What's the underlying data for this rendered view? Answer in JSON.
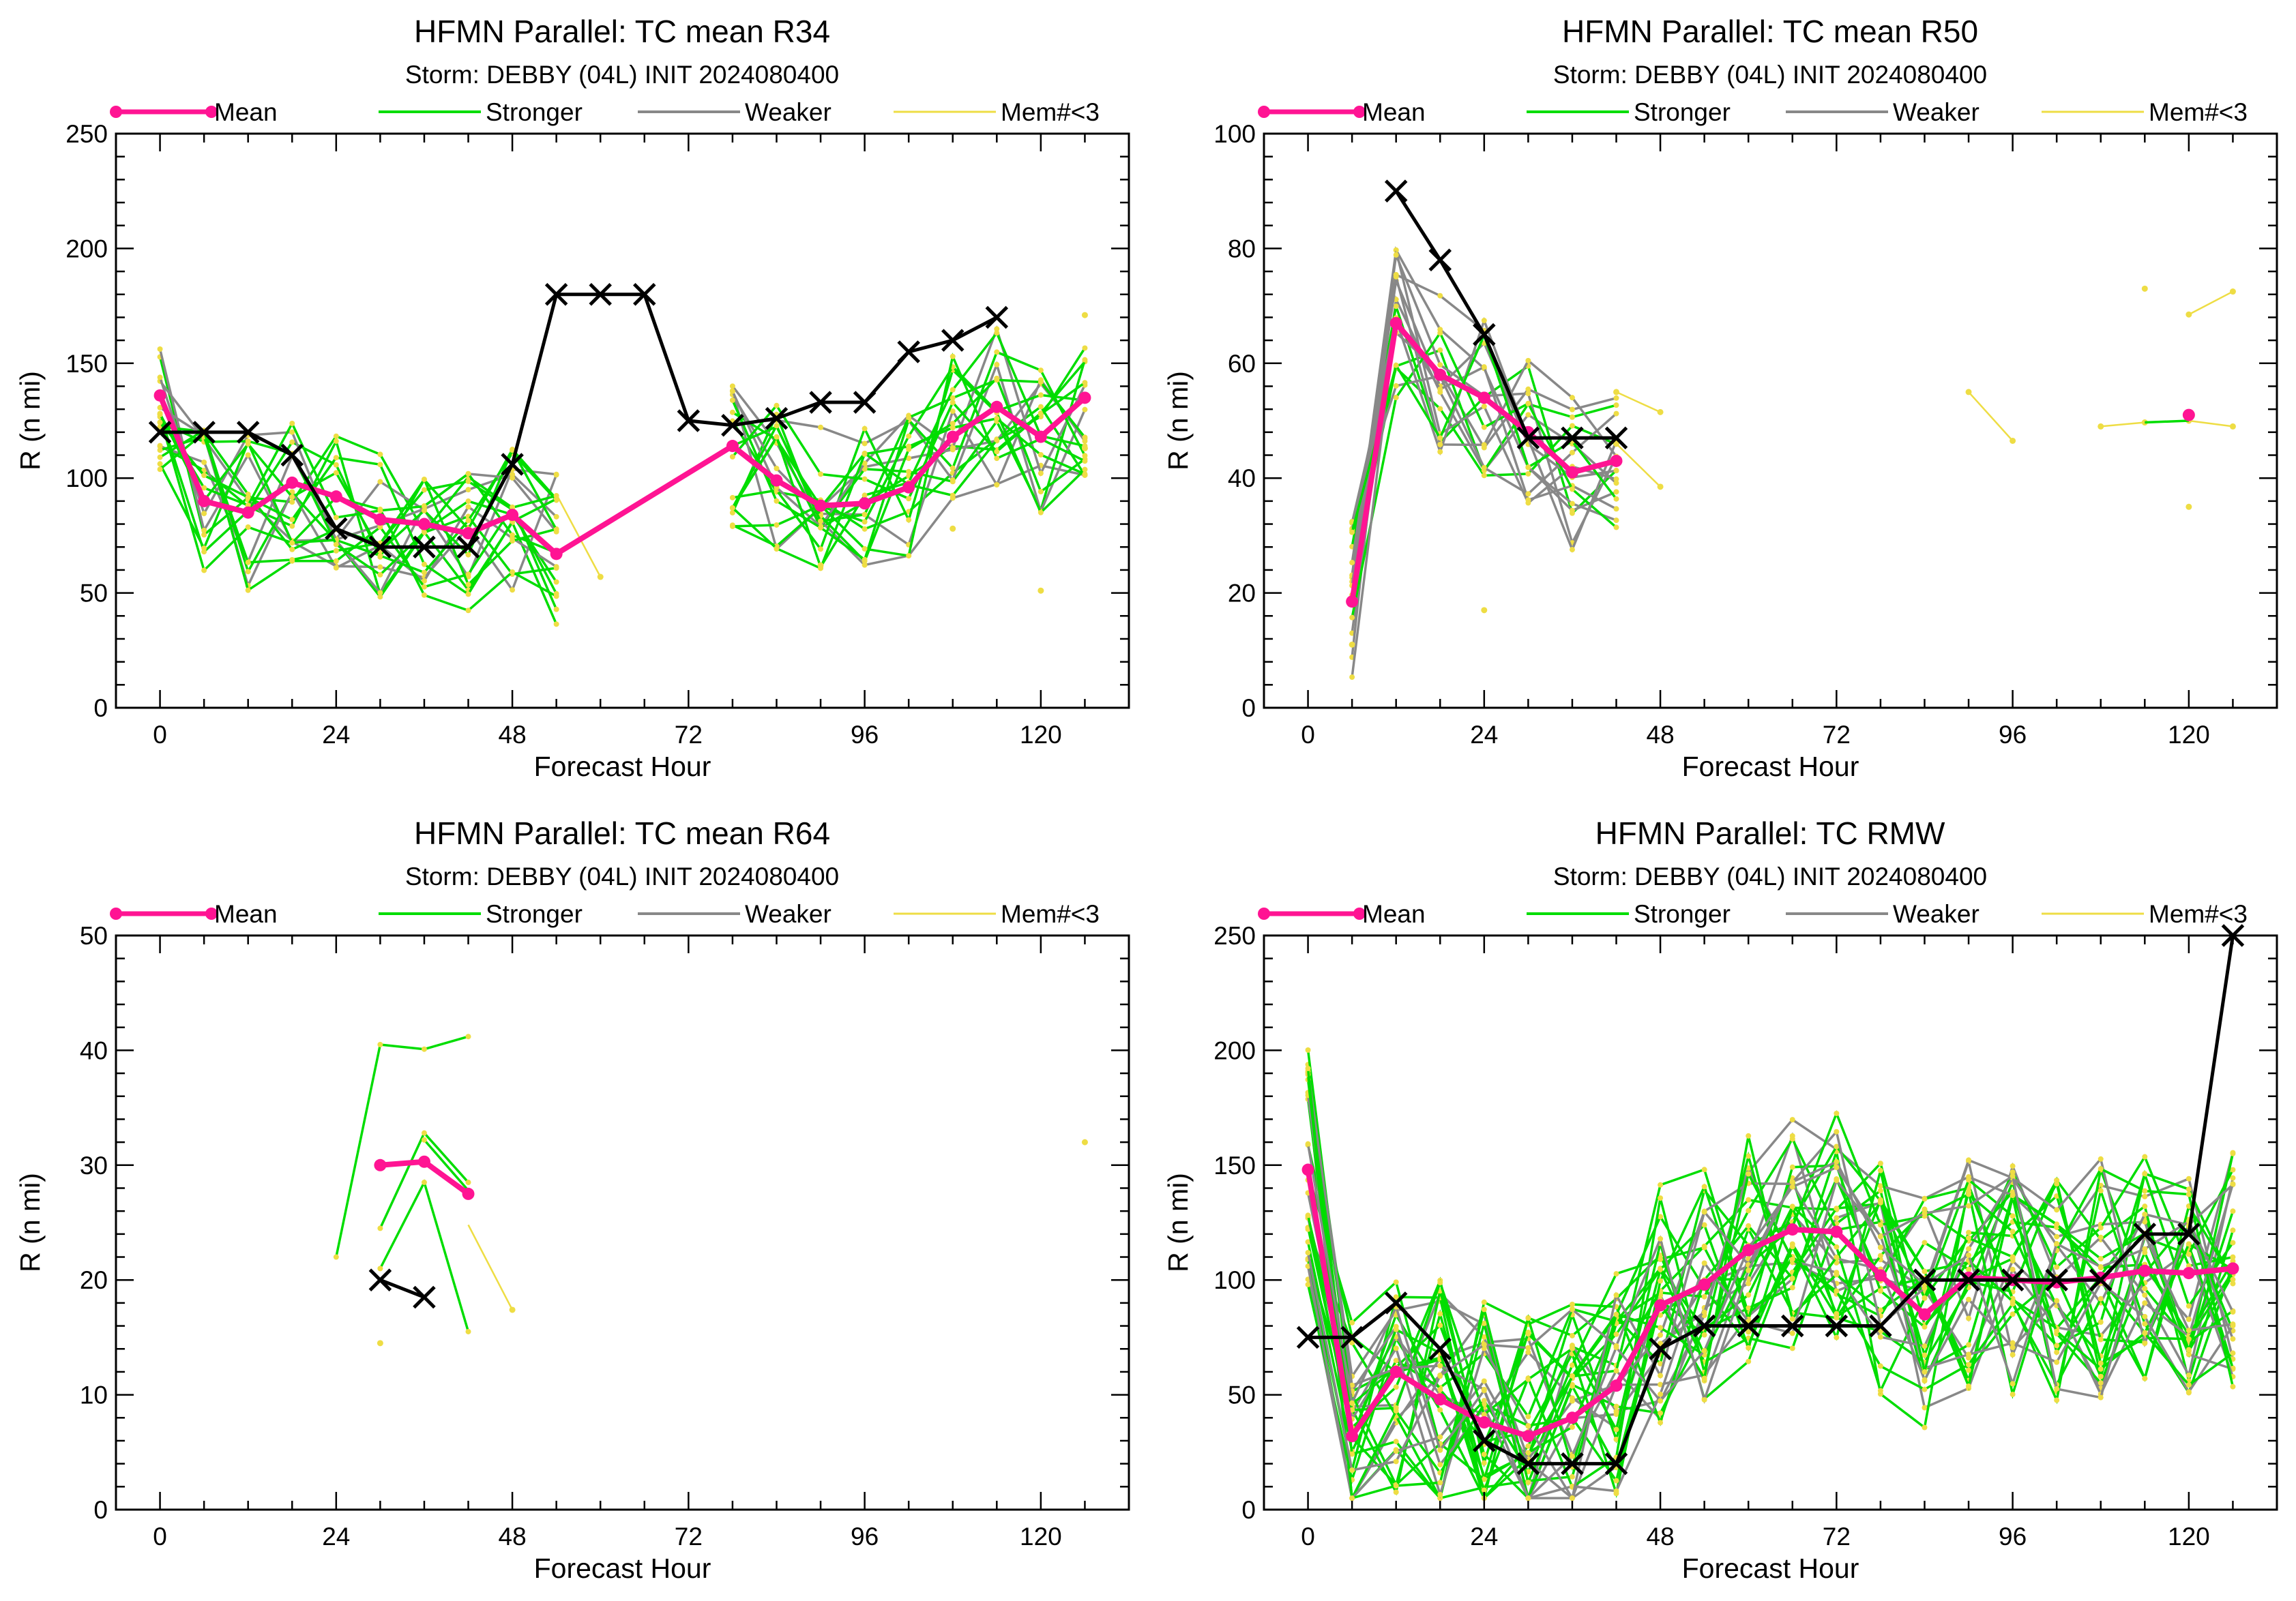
{
  "colors": {
    "mean": "#ff1493",
    "stronger": "#00dd00",
    "weaker": "#888888",
    "mem": "#eedd44",
    "best_track": "#000000"
  },
  "legend": {
    "mean": "Mean",
    "stronger": "Stronger",
    "weaker": "Weaker",
    "mem": "Mem#<3"
  },
  "chart_data": [
    {
      "type": "line",
      "title": "HFMN Parallel: TC mean R34",
      "subtitle": "Storm: DEBBY (04L) INIT 2024080400",
      "xlabel": "Forecast Hour",
      "ylabel": "R (n mi)",
      "xlim": [
        -6,
        132
      ],
      "ylim": [
        0,
        250
      ],
      "xticks": [
        0,
        24,
        48,
        72,
        96,
        120
      ],
      "yticks": [
        0,
        50,
        100,
        150,
        200,
        250
      ],
      "series": [
        {
          "name": "Mean",
          "x": [
            0,
            6,
            12,
            18,
            24,
            30,
            36,
            42,
            48,
            54,
            78,
            84,
            90,
            96,
            102,
            108,
            114,
            120,
            126
          ],
          "y": [
            136,
            90,
            85,
            98,
            92,
            82,
            80,
            76,
            84,
            67,
            114,
            99,
            88,
            89,
            96,
            118,
            131,
            118,
            135
          ]
        },
        {
          "name": "best track",
          "x": [
            0,
            6,
            12,
            18,
            24,
            30,
            36,
            42,
            48,
            54,
            60,
            66,
            72,
            78,
            84,
            90,
            96,
            102,
            108,
            114
          ],
          "y": [
            120,
            120,
            120,
            110,
            78,
            70,
            70,
            70,
            106,
            180,
            180,
            180,
            125,
            123,
            126,
            133,
            133,
            155,
            160,
            170
          ]
        }
      ]
    },
    {
      "type": "line",
      "title": "HFMN Parallel: TC mean R50",
      "subtitle": "Storm: DEBBY (04L) INIT 2024080400",
      "xlabel": "Forecast Hour",
      "ylabel": "R (n mi)",
      "xlim": [
        -6,
        132
      ],
      "ylim": [
        0,
        100
      ],
      "xticks": [
        0,
        24,
        48,
        72,
        96,
        120
      ],
      "yticks": [
        0,
        20,
        40,
        60,
        80,
        100
      ],
      "series": [
        {
          "name": "Mean",
          "x": [
            6,
            12,
            18,
            24,
            30,
            36,
            42
          ],
          "y": [
            18.5,
            67,
            58,
            54,
            48,
            41,
            43
          ]
        },
        {
          "name": "Mean",
          "x": [
            120
          ],
          "y": [
            51
          ]
        },
        {
          "name": "best track",
          "x": [
            12,
            18,
            24,
            30,
            36,
            42
          ],
          "y": [
            90,
            78,
            65,
            47,
            47,
            47
          ]
        }
      ]
    },
    {
      "type": "line",
      "title": "HFMN Parallel: TC mean R64",
      "subtitle": "Storm: DEBBY (04L) INIT 2024080400",
      "xlabel": "Forecast Hour",
      "ylabel": "R (n mi)",
      "xlim": [
        -6,
        132
      ],
      "ylim": [
        0,
        50
      ],
      "xticks": [
        0,
        24,
        48,
        72,
        96,
        120
      ],
      "yticks": [
        0,
        10,
        20,
        30,
        40,
        50
      ],
      "series": [
        {
          "name": "Mean",
          "x": [
            30,
            36,
            42
          ],
          "y": [
            30,
            30.3,
            27.5
          ]
        },
        {
          "name": "best track",
          "x": [
            30,
            36
          ],
          "y": [
            20,
            18.5
          ]
        }
      ]
    },
    {
      "type": "line",
      "title": "HFMN Parallel: TC RMW",
      "subtitle": "Storm: DEBBY (04L) INIT 2024080400",
      "xlabel": "Forecast Hour",
      "ylabel": "R (n mi)",
      "xlim": [
        -6,
        132
      ],
      "ylim": [
        0,
        250
      ],
      "xticks": [
        0,
        24,
        48,
        72,
        96,
        120
      ],
      "yticks": [
        0,
        50,
        100,
        150,
        200,
        250
      ],
      "series": [
        {
          "name": "Mean",
          "x": [
            0,
            6,
            12,
            18,
            24,
            30,
            36,
            42,
            48,
            54,
            60,
            66,
            72,
            78,
            84,
            90,
            96,
            102,
            108,
            114,
            120,
            126
          ],
          "y": [
            148,
            32,
            60,
            48,
            38,
            32,
            40,
            54,
            89,
            98,
            113,
            122,
            121,
            102,
            85,
            101,
            100,
            99,
            101,
            104,
            103,
            105
          ]
        },
        {
          "name": "best track",
          "x": [
            0,
            6,
            12,
            18,
            24,
            30,
            36,
            42,
            48,
            54,
            60,
            66,
            72,
            78,
            84,
            90,
            96,
            102,
            108,
            114,
            120,
            126
          ],
          "y": [
            75,
            75,
            90,
            70,
            30,
            20,
            20,
            20,
            70,
            80,
            80,
            80,
            80,
            80,
            100,
            100,
            100,
            100,
            100,
            120,
            120,
            250
          ]
        }
      ]
    }
  ]
}
